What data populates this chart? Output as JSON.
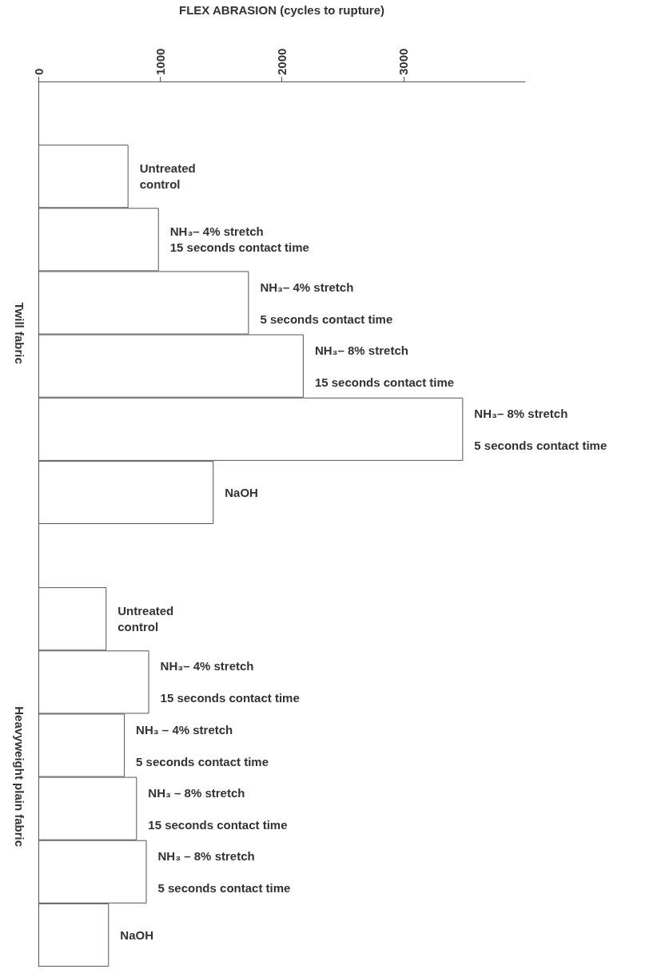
{
  "chart_data": {
    "type": "bar",
    "orientation": "horizontal",
    "xlabel": "FLEX ABRASION (cycles to rupture)",
    "categories": [
      null,
      "Untreated\ncontrol",
      "NH₃– 4% stretch\n15 seconds contact time",
      "NH₃– 4% stretch\n\n5 seconds contact time",
      "NH₃– 8% stretch\n\n15 seconds contact time",
      "NH₃– 8% stretch\n\n5 seconds contact time",
      "NaOH",
      null,
      "Untreated\ncontrol",
      "NH₃– 4% stretch\n\n15 seconds contact time",
      "NH₃ – 4% stretch\n\n5 seconds contact time",
      "NH₃ – 8% stretch\n\n15 seconds contact time",
      "NH₃ – 8% stretch\n\n5 seconds contact time",
      "NaOH"
    ],
    "values": [
      null,
      740,
      990,
      1730,
      2180,
      3490,
      1440,
      null,
      560,
      910,
      710,
      810,
      890,
      580
    ],
    "color": "#ffffff",
    "xlim": [
      0,
      4000
    ],
    "xticks": [
      0,
      1000,
      2000,
      3000
    ],
    "annotations": [
      "Twill fabric",
      "Heavyweight plain fabric"
    ],
    "grid": false
  }
}
